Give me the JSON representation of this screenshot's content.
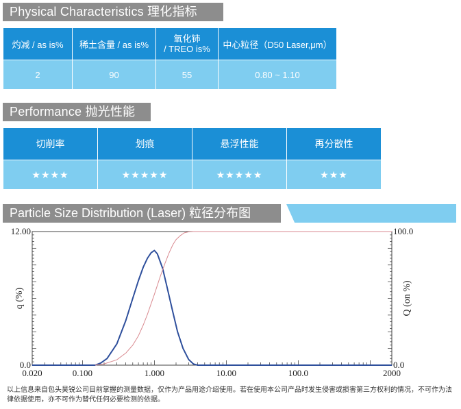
{
  "physical": {
    "title": "Physical Characteristics  理化指标",
    "headers": [
      "灼减 / as is%",
      "稀土含量 / as is%",
      "氧化铈",
      "/ TREO is%",
      "中心粒径（D50 Laser,μm）"
    ],
    "values": [
      "2",
      "90",
      "55",
      "0.80 ~ 1.10"
    ]
  },
  "performance": {
    "title": "Performance 抛光性能",
    "headers": [
      "切削率",
      "划痕",
      "悬浮性能",
      "再分散性"
    ],
    "ratings": [
      "★★★★",
      "★★★★★",
      "★★★★★",
      "★★★"
    ],
    "rating_counts": [
      4,
      5,
      5,
      3
    ]
  },
  "psd": {
    "title": "Particle Size Distribution (Laser) 粒径分布图"
  },
  "chart_data": {
    "type": "line",
    "ylabel": "q (%)",
    "y2label": "Q (on %)",
    "x_scale": "log",
    "xlim": [
      0.02,
      2000
    ],
    "ylim": [
      0,
      12
    ],
    "y2lim": [
      0,
      100
    ],
    "x_tick_labels": [
      "0.020",
      "0.100",
      "1.000",
      "10.00",
      "100.0",
      "2000"
    ],
    "x_ticks": [
      0.02,
      0.1,
      1,
      10,
      100,
      2000
    ],
    "y_tick_labels": [
      "12.00",
      "0.0"
    ],
    "y_ticks": [
      12,
      0
    ],
    "y2_tick_labels": [
      "100.0",
      "0.0"
    ],
    "y2_ticks": [
      100,
      0
    ],
    "grid": false,
    "series": [
      {
        "axis": "left",
        "color": "#2e4f9c",
        "x": [
          0.15,
          0.18,
          0.22,
          0.3,
          0.4,
          0.5,
          0.6,
          0.7,
          0.8,
          0.9,
          1.0,
          1.1,
          1.3,
          1.5,
          1.8,
          2.1,
          2.5,
          3.0,
          3.5,
          4.0
        ],
        "y": [
          0.0,
          0.2,
          0.6,
          1.9,
          4.0,
          6.0,
          7.6,
          8.8,
          9.6,
          10.1,
          10.3,
          10.0,
          8.7,
          7.0,
          4.8,
          3.0,
          1.5,
          0.5,
          0.1,
          0.0
        ]
      },
      {
        "axis": "right",
        "color": "#d98a90",
        "x": [
          0.15,
          0.2,
          0.3,
          0.4,
          0.5,
          0.6,
          0.7,
          0.8,
          0.9,
          1.0,
          1.2,
          1.4,
          1.6,
          1.8,
          2.0,
          2.3,
          2.6,
          3.0,
          3.5,
          4.0,
          2000
        ],
        "y": [
          0,
          1,
          4,
          9,
          15,
          22,
          30,
          38,
          46,
          53,
          66,
          76,
          84,
          90,
          94,
          97,
          99,
          99.8,
          100,
          100,
          100
        ]
      }
    ]
  },
  "disclaimer": "以上信息来自包头昊锐公司目前掌握的测量数据，仅作为产品用途介绍使用。若在使用本公司产品时发生侵害或损害第三方权利的情况，不可作为法律依据使用，亦不可作为替代任何必要检测的依据。"
}
